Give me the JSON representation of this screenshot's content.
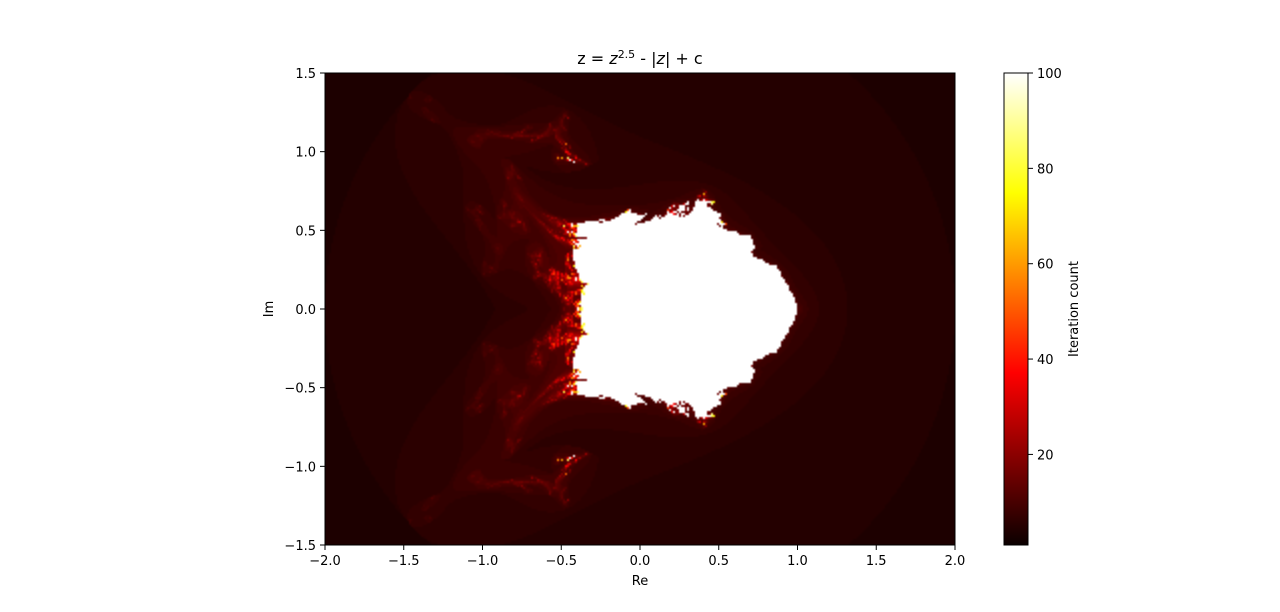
{
  "chart_data": {
    "type": "heatmap",
    "title_parts": {
      "prefix": "z = ",
      "base": "z",
      "exponent": "2.5",
      "middle": " - |",
      "abs_var": "z",
      "suffix": "| + c"
    },
    "xlabel": "Re",
    "ylabel": "Im",
    "xlim": [
      -2.0,
      2.0
    ],
    "ylim": [
      -1.5,
      1.5
    ],
    "xticks": [
      -2.0,
      -1.5,
      -1.0,
      -0.5,
      0.0,
      0.5,
      1.0,
      1.5,
      2.0
    ],
    "xtick_labels": [
      "−2.0",
      "−1.5",
      "−1.0",
      "−0.5",
      "0.0",
      "0.5",
      "1.0",
      "1.5",
      "2.0"
    ],
    "yticks": [
      -1.5,
      -1.0,
      -0.5,
      0.0,
      0.5,
      1.0,
      1.5
    ],
    "ytick_labels": [
      "−1.5",
      "−1.0",
      "−0.5",
      "0.0",
      "0.5",
      "1.0",
      "1.5"
    ],
    "colormap": "hot",
    "colorbar": {
      "label": "Iteration count",
      "min": 1,
      "max": 100,
      "ticks": [
        20,
        40,
        60,
        80,
        100
      ],
      "tick_labels": [
        "20",
        "40",
        "60",
        "80",
        "100"
      ]
    },
    "formula": {
      "exponent": 2.5,
      "max_iter": 100,
      "escape_radius": 2.0
    },
    "grid": false
  }
}
